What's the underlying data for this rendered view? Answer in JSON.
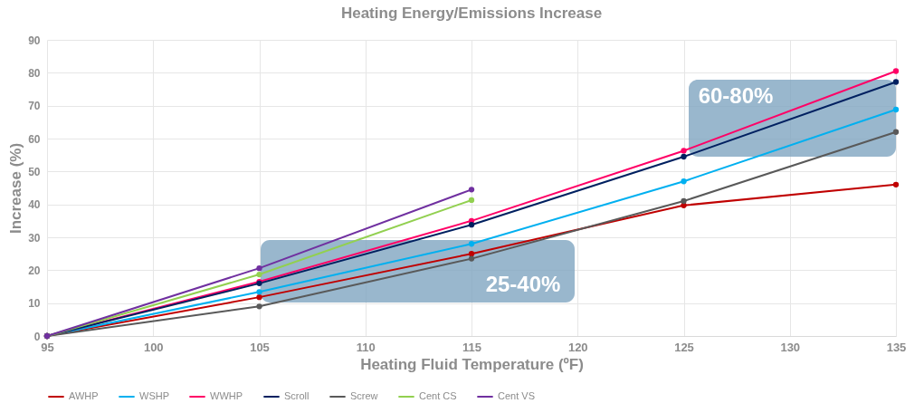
{
  "chart_data": {
    "type": "line",
    "title": "Heating Energy/Emissions Increase",
    "xlabel": "Heating Fluid Temperature (ºF)",
    "ylabel": "Increase (%)",
    "x": [
      95,
      105,
      115,
      125,
      135
    ],
    "series": [
      {
        "name": "AWHP",
        "color": "#c00000",
        "values": [
          0,
          11.8,
          25,
          39.7,
          46
        ]
      },
      {
        "name": "WSHP",
        "color": "#00b0f0",
        "values": [
          0,
          13.4,
          28,
          47,
          68.8
        ]
      },
      {
        "name": "WWHP",
        "color": "#ff0066",
        "values": [
          0,
          16.5,
          35,
          56.3,
          80.5
        ]
      },
      {
        "name": "Scroll",
        "color": "#002060",
        "values": [
          0,
          16,
          33.8,
          54.5,
          77.2
        ]
      },
      {
        "name": "Screw",
        "color": "#595959",
        "values": [
          0,
          9,
          23.5,
          41,
          62
        ]
      },
      {
        "name": "Cent CS",
        "color": "#92d050",
        "values": [
          0,
          18.7,
          41.3,
          null,
          null
        ]
      },
      {
        "name": "Cent VS",
        "color": "#7030a0",
        "values": [
          0,
          20.6,
          44.5,
          null,
          null
        ]
      }
    ],
    "xlim": [
      95,
      135
    ],
    "xticks": [
      95,
      100,
      105,
      110,
      115,
      120,
      125,
      130,
      135
    ],
    "ylim": [
      0,
      90
    ],
    "yticks": [
      0,
      10,
      20,
      30,
      40,
      50,
      60,
      70,
      80,
      90
    ],
    "grid": true,
    "legend": "bottom",
    "marker": "circle",
    "line_style": "solid",
    "annotations": [
      "25-40%",
      "60-80%"
    ]
  }
}
